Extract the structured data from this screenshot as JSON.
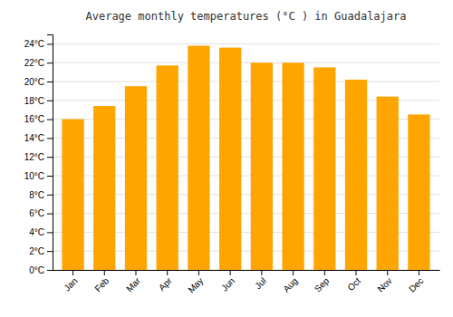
{
  "chart_data": {
    "type": "bar",
    "title": "Average monthly temperatures (°C ) in Guadalajara",
    "categories": [
      "Jan",
      "Feb",
      "Mar",
      "Apr",
      "May",
      "Jun",
      "Jul",
      "Aug",
      "Sep",
      "Oct",
      "Nov",
      "Dec"
    ],
    "values": [
      16.0,
      17.4,
      19.5,
      21.7,
      23.8,
      23.6,
      22.0,
      22.0,
      21.5,
      20.2,
      18.4,
      16.5
    ],
    "color": "#FFA500",
    "ylim": [
      0,
      25
    ],
    "yticks": [
      {
        "value": 0,
        "label": "0°C"
      },
      {
        "value": 2,
        "label": "2°C"
      },
      {
        "value": 4,
        "label": "4°C"
      },
      {
        "value": 6,
        "label": "6°C"
      },
      {
        "value": 8,
        "label": "8°C"
      },
      {
        "value": 10,
        "label": "10°C"
      },
      {
        "value": 12,
        "label": "12°C"
      },
      {
        "value": 14,
        "label": "14°C"
      },
      {
        "value": 16,
        "label": "16°C"
      },
      {
        "value": 18,
        "label": "18°C"
      },
      {
        "value": 20,
        "label": "20°C"
      },
      {
        "value": 22,
        "label": "22°C"
      },
      {
        "value": 24,
        "label": "24°C"
      }
    ],
    "grid": true
  }
}
